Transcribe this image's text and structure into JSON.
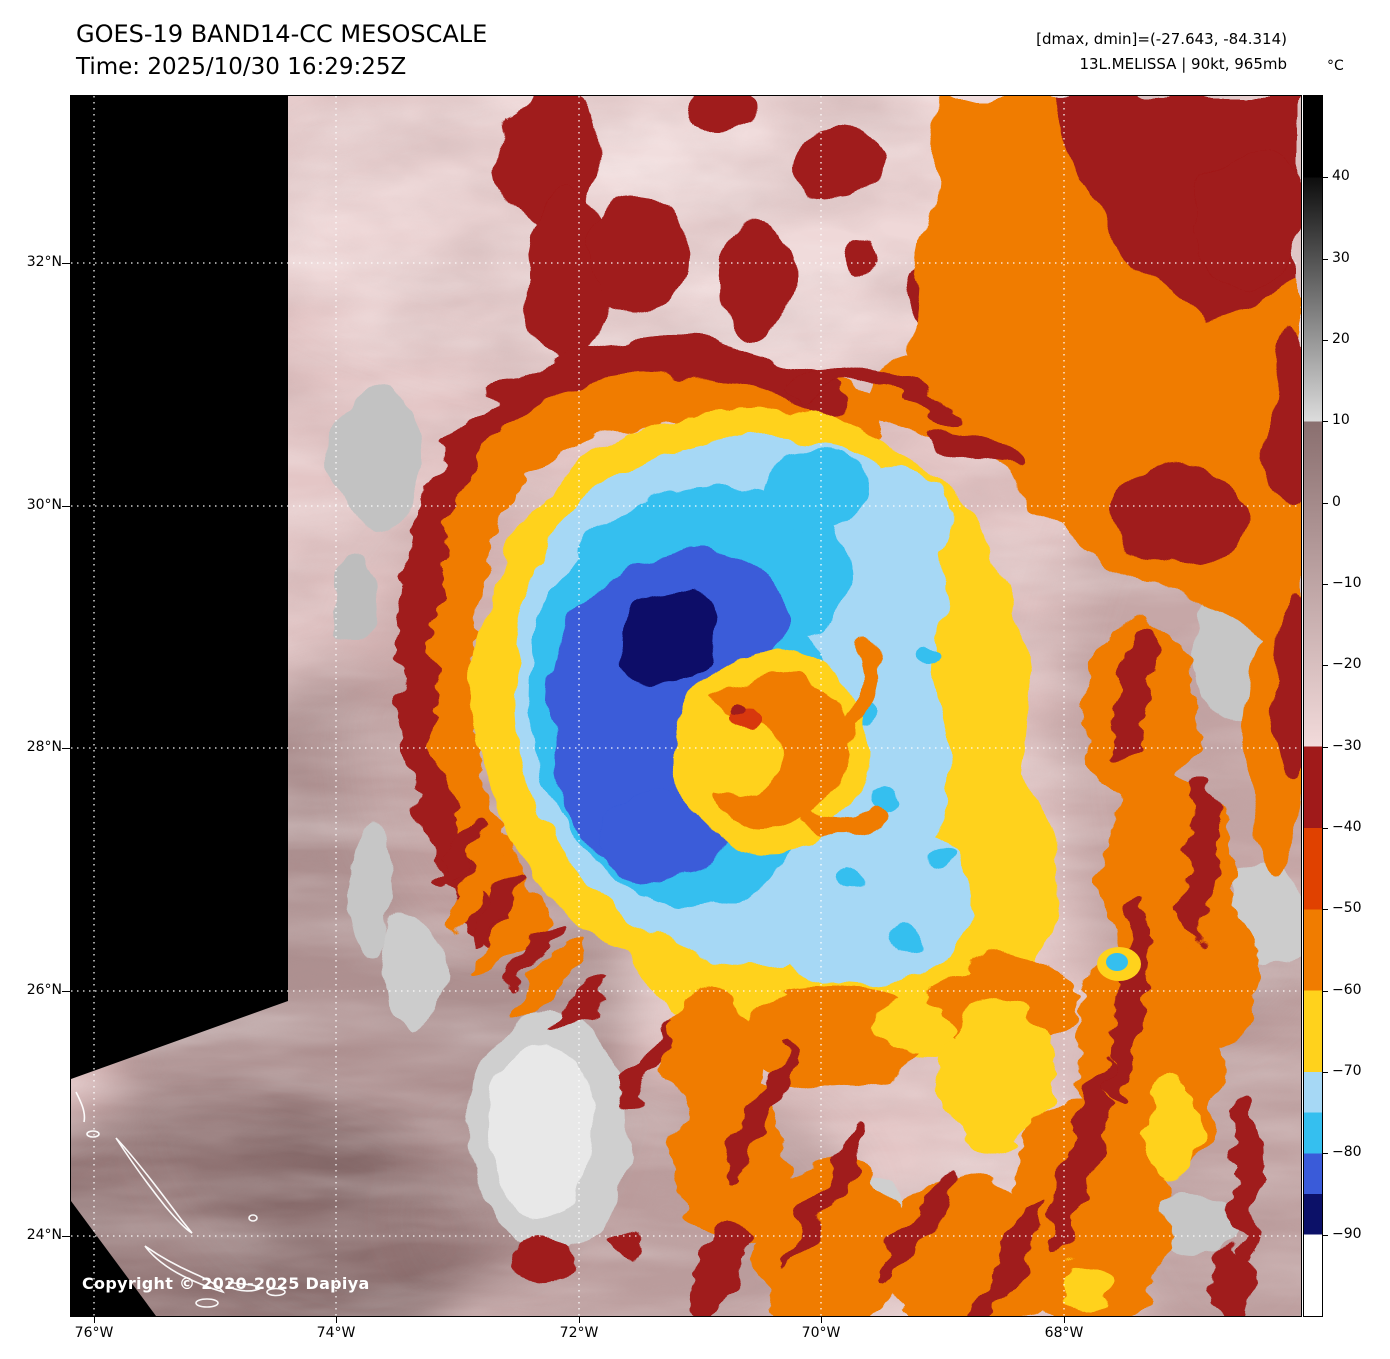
{
  "header": {
    "title": "GOES-19 BAND14-CC MESOSCALE",
    "time": "Time: 2025/10/30 16:29:25Z",
    "range_line": "[dmax, dmin]=(-27.643, -84.314)",
    "storm_line": "13L.MELISSA | 90kt, 965mb"
  },
  "colorbar": {
    "unit_label": "°C",
    "ticks": [
      "40",
      "30",
      "20",
      "10",
      "0",
      "−10",
      "−20",
      "−30",
      "−40",
      "−50",
      "−60",
      "−70",
      "−80",
      "−90"
    ],
    "colors": {
      "black": "#000000",
      "gray_ramp": [
        "#0d0d0d",
        "#dcdcdc"
      ],
      "pink_ramp": [
        "#8a6f6f",
        "#f2dada"
      ],
      "dark_red": "#a01a1a",
      "red_orange": "#e04100",
      "orange": "#f07c00",
      "yellow": "#ffd21c",
      "pale_blue": "#a6d8f5",
      "cyan": "#35bfef",
      "blue": "#3a5bd9",
      "navy": "#0c1168",
      "white": "#ffffff"
    }
  },
  "axes": {
    "lat_labels": [
      "32°N",
      "30°N",
      "28°N",
      "26°N",
      "24°N"
    ],
    "lon_labels": [
      "76°W",
      "74°W",
      "72°W",
      "70°W",
      "68°W"
    ]
  },
  "map": {
    "copyright": "Copyright © 2020-2025 Dapiya"
  }
}
